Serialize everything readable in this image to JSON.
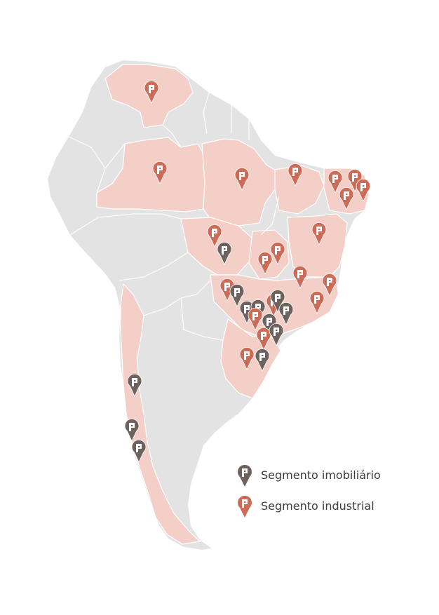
{
  "colors": {
    "land": "#e3e3e3",
    "highlight": "#f4cfc7",
    "border": "#ffffff",
    "real_estate_marker": "#6e625f",
    "industrial_marker": "#cc6b58"
  },
  "legend": {
    "real_estate_label": "Segmento imobiliário",
    "industrial_label": "Segmento industrial"
  },
  "marker_icon": "logo-pin-icon"
}
